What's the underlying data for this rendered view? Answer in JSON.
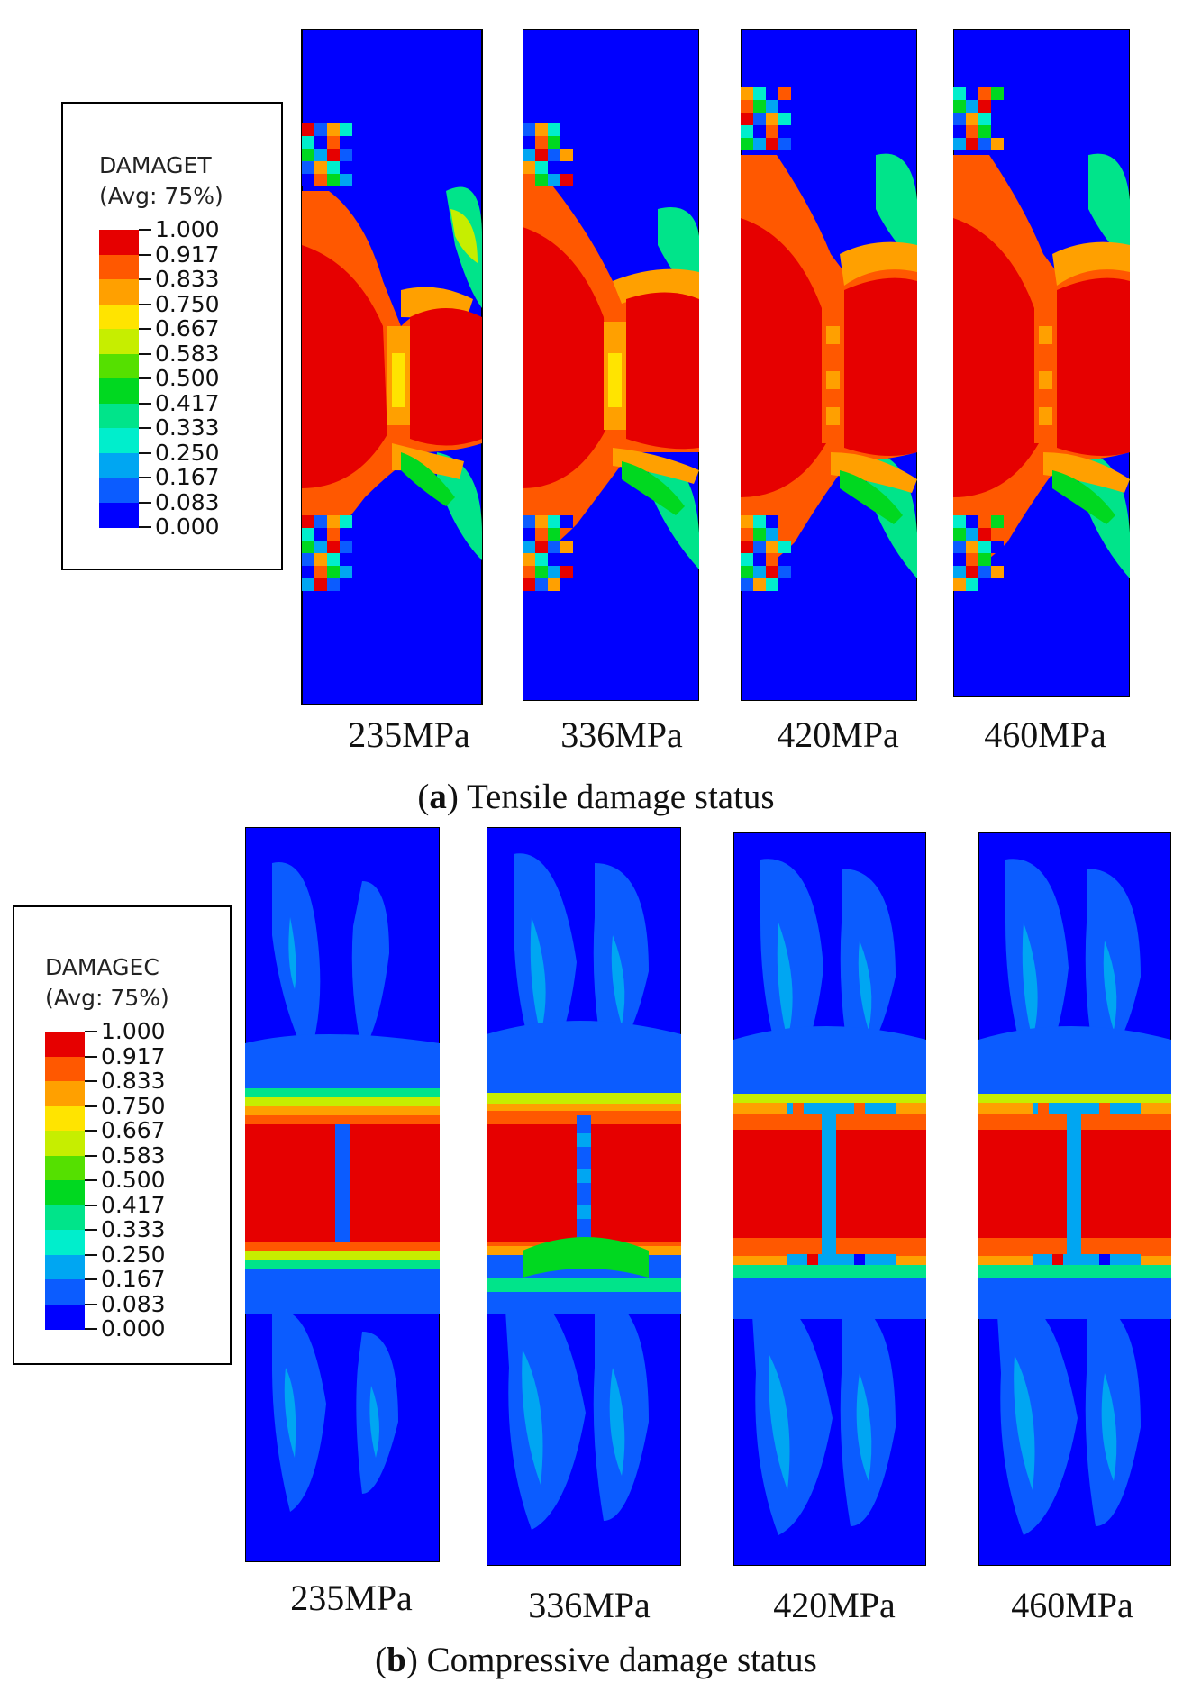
{
  "colormap": [
    "#0000ff",
    "#0b5cff",
    "#00a6f2",
    "#00eecc",
    "#00e48a",
    "#00d820",
    "#55e000",
    "#c6ee00",
    "#ffe400",
    "#ffa000",
    "#ff5800",
    "#e60000"
  ],
  "tensile": {
    "legend": {
      "title": "DAMAGET",
      "avg": "(Avg: 75%)",
      "values": [
        "1.000",
        "0.917",
        "0.833",
        "0.750",
        "0.667",
        "0.583",
        "0.500",
        "0.417",
        "0.333",
        "0.250",
        "0.167",
        "0.083",
        "0.000"
      ]
    },
    "panels": [
      {
        "label": "235MPa"
      },
      {
        "label": "336MPa"
      },
      {
        "label": "420MPa"
      },
      {
        "label": "460MPa"
      }
    ],
    "caption_letter": "a",
    "caption_text": "Tensile damage status"
  },
  "compressive": {
    "legend": {
      "title": "DAMAGEC",
      "avg": "(Avg: 75%)",
      "values": [
        "1.000",
        "0.917",
        "0.833",
        "0.750",
        "0.667",
        "0.583",
        "0.500",
        "0.417",
        "0.333",
        "0.250",
        "0.167",
        "0.083",
        "0.000"
      ]
    },
    "panels": [
      {
        "label": "235MPa"
      },
      {
        "label": "336MPa"
      },
      {
        "label": "420MPa"
      },
      {
        "label": "460MPa"
      }
    ],
    "caption_letter": "b",
    "caption_text": "Compressive damage status"
  }
}
